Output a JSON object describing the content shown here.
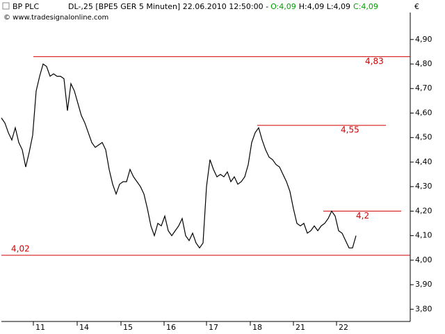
{
  "chart_data": {
    "type": "line",
    "title": "BP PLC",
    "subtitle": "DL-,25 [BPE5 GER  5 Minuten] 22.06.2010 12:50:00 -",
    "quote": [
      {
        "text": "O:4,09",
        "color": "#00a000"
      },
      {
        "text": "H:4,09 L:4,09",
        "color": "#000000"
      },
      {
        "text": "C:4,09",
        "color": "#00a000"
      }
    ],
    "copyright": "© www.tradesignalonline.com",
    "currency": "€",
    "series": [
      {
        "name": "BP PLC",
        "color": "#000000",
        "values": [
          4.58,
          4.56,
          4.52,
          4.49,
          4.54,
          4.48,
          4.45,
          4.38,
          4.44,
          4.51,
          4.69,
          4.75,
          4.8,
          4.79,
          4.75,
          4.76,
          4.75,
          4.75,
          4.74,
          4.61,
          4.72,
          4.69,
          4.64,
          4.59,
          4.56,
          4.52,
          4.48,
          4.46,
          4.47,
          4.48,
          4.45,
          4.37,
          4.31,
          4.27,
          4.31,
          4.32,
          4.32,
          4.37,
          4.34,
          4.32,
          4.3,
          4.27,
          4.21,
          4.14,
          4.1,
          4.15,
          4.14,
          4.18,
          4.12,
          4.1,
          4.12,
          4.14,
          4.17,
          4.1,
          4.08,
          4.11,
          4.07,
          4.05,
          4.07,
          4.3,
          4.41,
          4.37,
          4.34,
          4.35,
          4.34,
          4.36,
          4.32,
          4.34,
          4.31,
          4.32,
          4.34,
          4.39,
          4.48,
          4.52,
          4.54,
          4.49,
          4.45,
          4.42,
          4.41,
          4.39,
          4.38,
          4.35,
          4.32,
          4.28,
          4.21,
          4.15,
          4.14,
          4.15,
          4.11,
          4.12,
          4.14,
          4.12,
          4.14,
          4.15,
          4.17,
          4.2,
          4.18,
          4.12,
          4.11,
          4.08,
          4.05,
          4.05,
          4.1
        ]
      }
    ],
    "levels": [
      {
        "value": 4.83,
        "label": "4,83",
        "x": [
          9.2,
          117.6
        ]
      },
      {
        "value": 4.55,
        "label": "4,55",
        "x": [
          73.6,
          110.6
        ]
      },
      {
        "value": 4.2,
        "label": "4,2",
        "x": [
          92.6,
          115
        ]
      },
      {
        "value": 4.02,
        "label": "4,02",
        "x": [
          0,
          117.6
        ]
      }
    ],
    "level_color": "#d00000",
    "xlim": [
      0,
      117.6
    ],
    "xticks": [
      {
        "value": 9.2,
        "label": "11"
      },
      {
        "value": 21.8,
        "label": "14"
      },
      {
        "value": 34.4,
        "label": "15"
      },
      {
        "value": 46.8,
        "label": "16"
      },
      {
        "value": 59,
        "label": "17"
      },
      {
        "value": 71.6,
        "label": "18"
      },
      {
        "value": 84,
        "label": "21"
      },
      {
        "value": 96.4,
        "label": "22"
      }
    ],
    "ylim": [
      3.75,
      5.01
    ],
    "yticks": [
      {
        "value": 3.8,
        "label": "3,80"
      },
      {
        "value": 3.9,
        "label": "3,90"
      },
      {
        "value": 4.0,
        "label": "4,00"
      },
      {
        "value": 4.1,
        "label": "4,10"
      },
      {
        "value": 4.2,
        "label": "4,20"
      },
      {
        "value": 4.3,
        "label": "4,30"
      },
      {
        "value": 4.4,
        "label": "4,40"
      },
      {
        "value": 4.5,
        "label": "4,50"
      },
      {
        "value": 4.6,
        "label": "4,60"
      },
      {
        "value": 4.7,
        "label": "4,70"
      },
      {
        "value": 4.8,
        "label": "4,80"
      },
      {
        "value": 4.9,
        "label": "4,90"
      }
    ]
  }
}
